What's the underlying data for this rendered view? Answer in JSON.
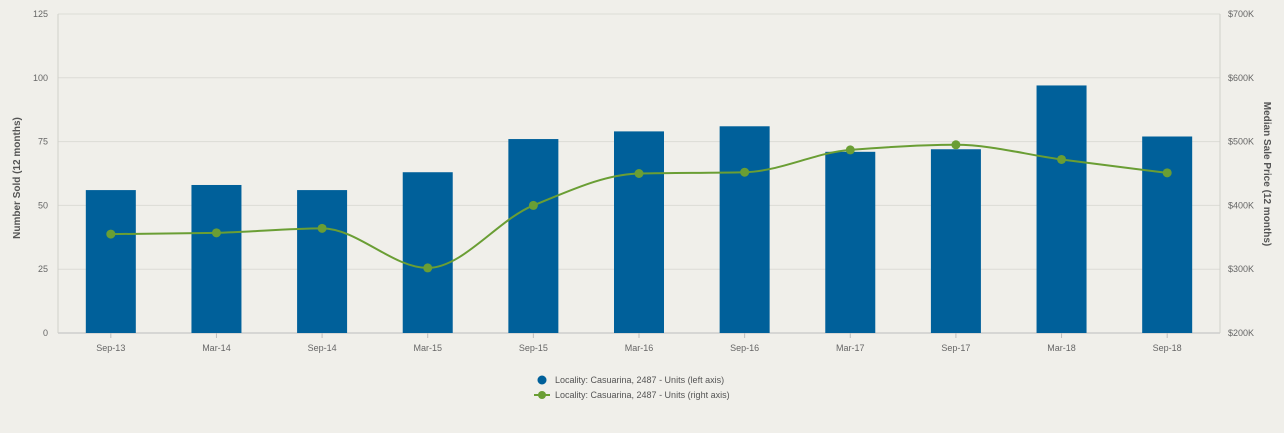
{
  "chart_data": {
    "type": "bar",
    "categories": [
      "Sep-13",
      "Mar-14",
      "Sep-14",
      "Mar-15",
      "Sep-15",
      "Mar-16",
      "Sep-16",
      "Mar-17",
      "Sep-17",
      "Mar-18",
      "Sep-18"
    ],
    "series": [
      {
        "name": "Locality: Casuarina, 2487 - Units (left axis)",
        "type": "bar",
        "axis": "left",
        "color": "#00609a",
        "values": [
          56,
          58,
          56,
          63,
          76,
          79,
          81,
          71,
          72,
          97,
          77
        ]
      },
      {
        "name": "Locality: Casuarina, 2487 - Units (right axis)",
        "type": "line",
        "axis": "right",
        "color": "#6a9e34",
        "values": [
          355000,
          357000,
          364000,
          302000,
          400000,
          450000,
          452000,
          487000,
          495000,
          472000,
          451000
        ]
      }
    ],
    "ylabel": "Number Sold (12 months)",
    "y2label": "Median Sale Price (12 months)",
    "ylim": [
      0,
      125
    ],
    "yticks": [
      0,
      25,
      50,
      75,
      100,
      125
    ],
    "y2lim": [
      200000,
      700000
    ],
    "y2ticks": [
      {
        "value": 200000,
        "label": "$200K"
      },
      {
        "value": 300000,
        "label": "$300K"
      },
      {
        "value": 400000,
        "label": "$400K"
      },
      {
        "value": 500000,
        "label": "$500K"
      },
      {
        "value": 600000,
        "label": "$600K"
      },
      {
        "value": 700000,
        "label": "$700K"
      }
    ],
    "grid": true,
    "legend": "bottom-center"
  }
}
